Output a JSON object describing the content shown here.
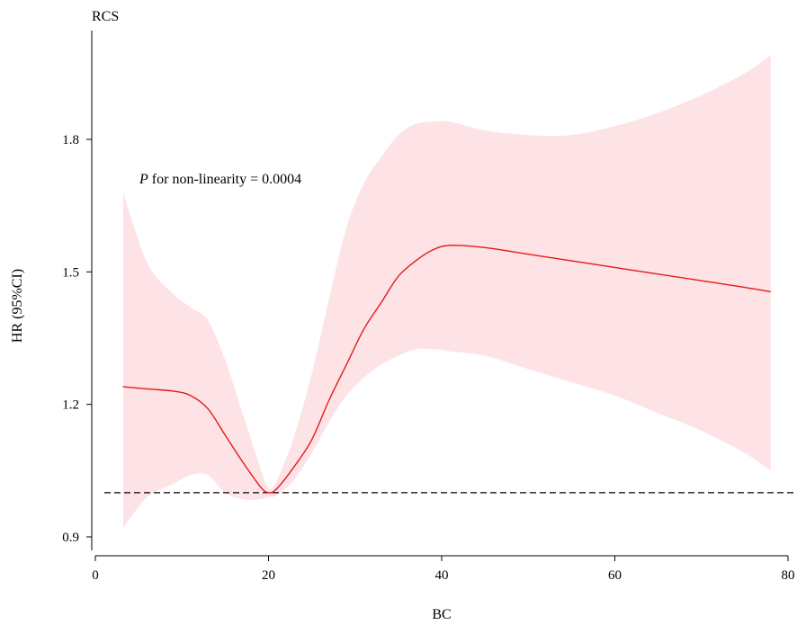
{
  "chart_data": {
    "type": "line",
    "title": "RCS",
    "xlabel": "BC",
    "ylabel": "HR (95%CI)",
    "xlim": [
      0,
      80
    ],
    "ylim": [
      0.9,
      2.0
    ],
    "xticks": [
      0,
      20,
      40,
      60,
      80
    ],
    "yticks": [
      0.9,
      1.2,
      1.5,
      1.8
    ],
    "xtick_labels": [
      "0",
      "20",
      "40",
      "60",
      "80"
    ],
    "ytick_labels": [
      "0.9",
      "1.2",
      "1.5",
      "1.8"
    ],
    "reference_line": {
      "y": 1.0,
      "style": "dashed"
    },
    "annotation": {
      "italic": "P",
      "text": " for non-linearity = 0.0004"
    },
    "grid": false,
    "colors": {
      "line": "#e41a1c",
      "band": "#fde3e6",
      "reference": "#000000"
    },
    "series": [
      {
        "x": [
          3.2,
          6,
          9,
          11,
          13,
          15,
          17,
          19,
          20,
          21,
          23,
          25,
          27,
          29,
          31,
          33,
          35,
          37,
          39,
          41,
          45,
          50,
          55,
          60,
          65,
          70,
          75,
          78
        ],
        "y": [
          1.24,
          1.235,
          1.23,
          1.22,
          1.19,
          1.13,
          1.07,
          1.015,
          1.0,
          1.01,
          1.06,
          1.12,
          1.21,
          1.29,
          1.37,
          1.43,
          1.49,
          1.525,
          1.55,
          1.56,
          1.555,
          1.54,
          1.525,
          1.51,
          1.495,
          1.48,
          1.465,
          1.455
        ],
        "lower": [
          0.92,
          0.99,
          1.02,
          1.04,
          1.04,
          1.0,
          0.985,
          0.985,
          0.99,
          0.995,
          1.03,
          1.09,
          1.16,
          1.22,
          1.26,
          1.29,
          1.31,
          1.325,
          1.325,
          1.32,
          1.31,
          1.28,
          1.25,
          1.22,
          1.18,
          1.14,
          1.09,
          1.05
        ],
        "upper": [
          1.68,
          1.52,
          1.45,
          1.42,
          1.39,
          1.3,
          1.18,
          1.06,
          1.01,
          1.03,
          1.13,
          1.27,
          1.44,
          1.6,
          1.7,
          1.76,
          1.81,
          1.835,
          1.84,
          1.84,
          1.82,
          1.81,
          1.81,
          1.83,
          1.86,
          1.9,
          1.95,
          1.99
        ]
      }
    ]
  }
}
